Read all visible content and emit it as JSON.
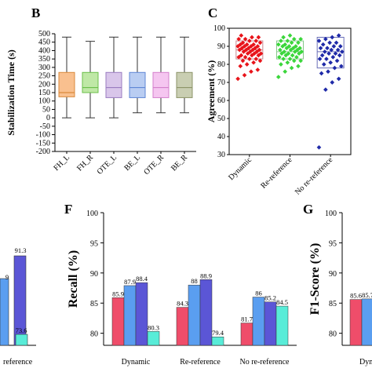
{
  "chart_data": [
    {
      "id": "B",
      "type": "boxplot",
      "panel_label": "B",
      "ylabel": "Stabilization Time (s)",
      "ylim": [
        -200,
        500
      ],
      "yticks": [
        -200,
        -150,
        -100,
        -50,
        0,
        50,
        100,
        150,
        200,
        250,
        300,
        350,
        400,
        450,
        500
      ],
      "categories": [
        "FH_L",
        "FH_R",
        "OTE_L",
        "BE_L",
        "OTE_R",
        "BE_R"
      ],
      "boxes": [
        {
          "min": 0,
          "q1": 125,
          "median": 150,
          "q3": 270,
          "max": 480,
          "color": "#f9c08f",
          "stroke": "#d98a3c"
        },
        {
          "min": 0,
          "q1": 150,
          "median": 180,
          "q3": 270,
          "max": 455,
          "color": "#bfe8a6",
          "stroke": "#6bbf4a"
        },
        {
          "min": 0,
          "q1": 120,
          "median": 180,
          "q3": 270,
          "max": 480,
          "color": "#d9c6ea",
          "stroke": "#9a7cc0"
        },
        {
          "min": 30,
          "q1": 120,
          "median": 180,
          "q3": 270,
          "max": 480,
          "color": "#b9cdf2",
          "stroke": "#5f86d6"
        },
        {
          "min": 30,
          "q1": 120,
          "median": 180,
          "q3": 270,
          "max": 480,
          "color": "#f5c6f0",
          "stroke": "#d47fcb"
        },
        {
          "min": 30,
          "q1": 120,
          "median": 180,
          "q3": 270,
          "max": 480,
          "color": "#c9ceb2",
          "stroke": "#8c9468"
        }
      ]
    },
    {
      "id": "C",
      "type": "scatter",
      "panel_label": "C",
      "ylabel": "Agreement (%)",
      "ylim": [
        30,
        100
      ],
      "yticks": [
        30,
        40,
        50,
        60,
        70,
        80,
        90,
        100
      ],
      "categories": [
        "Dynamic",
        "Re-reference",
        "No re-reference"
      ],
      "boxes": [
        {
          "q1": 83,
          "median": 88,
          "q3": 93,
          "stroke": "#c9868e"
        },
        {
          "q1": 83,
          "median": 87,
          "q3": 93,
          "stroke": "#86c78a"
        },
        {
          "q1": 78,
          "median": 87,
          "q3": 95,
          "stroke": "#6a6fb8"
        }
      ],
      "series": [
        {
          "color": "#e8141a",
          "values": [
            72,
            74,
            76,
            77,
            79,
            80,
            81,
            82,
            82,
            83,
            83,
            84,
            84,
            85,
            85,
            85,
            86,
            86,
            86,
            87,
            87,
            87,
            88,
            88,
            88,
            88,
            89,
            89,
            89,
            90,
            90,
            90,
            90,
            91,
            91,
            91,
            92,
            92,
            93,
            93,
            94,
            94,
            95,
            95,
            96
          ]
        },
        {
          "color": "#3bd63b",
          "values": [
            73,
            76,
            78,
            79,
            80,
            81,
            82,
            82,
            83,
            83,
            84,
            84,
            85,
            85,
            86,
            86,
            86,
            87,
            87,
            87,
            88,
            88,
            88,
            89,
            89,
            89,
            90,
            90,
            90,
            91,
            91,
            92,
            92,
            93,
            93,
            94,
            94,
            95,
            96
          ]
        },
        {
          "color": "#1f2aa8",
          "values": [
            34,
            66,
            70,
            72,
            75,
            76,
            78,
            79,
            80,
            81,
            82,
            83,
            83,
            84,
            85,
            85,
            86,
            86,
            87,
            87,
            88,
            88,
            89,
            89,
            90,
            90,
            91,
            92,
            92,
            93,
            94,
            95,
            96
          ]
        }
      ]
    },
    {
      "id": "E",
      "type": "bar",
      "panel_label": "",
      "categories": [
        "re-reference"
      ],
      "values_visible": [
        [
          "91.3",
          "73.6"
        ]
      ]
    },
    {
      "id": "F",
      "type": "bar",
      "panel_label": "F",
      "ylabel": "Recall (%)",
      "ylim": [
        78,
        100
      ],
      "yticks": [
        80,
        85,
        90,
        95,
        100
      ],
      "categories": [
        "Dynamic",
        "Re-reference",
        "No re-reference"
      ],
      "colors": [
        "#ef4d6a",
        "#5a9ef0",
        "#5b56d6",
        "#58ecd8"
      ],
      "groups": [
        [
          85.9,
          87.9,
          88.4,
          80.3
        ],
        [
          84.3,
          88,
          88.9,
          79.4
        ],
        [
          81.7,
          86,
          85.2,
          84.5
        ]
      ]
    },
    {
      "id": "G",
      "type": "bar",
      "panel_label": "G",
      "ylabel": "F1-Score (%)",
      "ylim": [
        78,
        100
      ],
      "yticks": [
        80,
        85,
        90,
        95,
        100
      ],
      "categories": [
        "Dyn"
      ],
      "groups": [
        [
          85.6,
          85.7
        ]
      ]
    }
  ],
  "labels": {
    "b": "B",
    "c": "C",
    "f": "F",
    "g": "G",
    "e_val_a": "91.3",
    "e_val_b": "73.6",
    "e_val_c": "9",
    "e_cat": "reference",
    "g_cat": "Dyn"
  }
}
